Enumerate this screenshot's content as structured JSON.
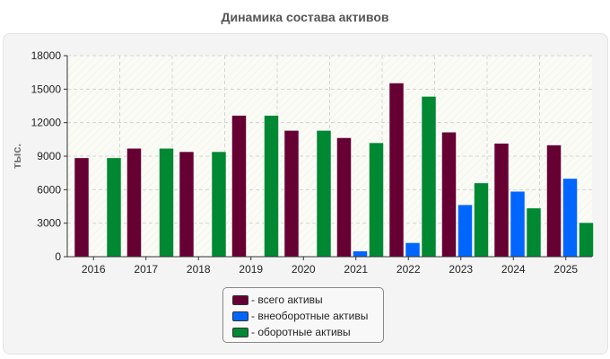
{
  "title": "Динамика состава активов",
  "chart_data": {
    "type": "bar",
    "categories": [
      "2016",
      "2017",
      "2018",
      "2019",
      "2020",
      "2021",
      "2022",
      "2023",
      "2024",
      "2025"
    ],
    "ylabel": "тыс.",
    "ylim": [
      0,
      18000
    ],
    "yticks": [
      0,
      3000,
      6000,
      9000,
      12000,
      15000,
      18000
    ],
    "grid": true,
    "legend_position": "bottom",
    "series": [
      {
        "name": "- всего активы",
        "color": "#660033",
        "values": [
          8850,
          9700,
          9400,
          12650,
          11300,
          10650,
          15550,
          11150,
          10150,
          10000
        ]
      },
      {
        "name": "- внеоборотные активы",
        "color": "#0066ff",
        "values": [
          50,
          50,
          50,
          50,
          50,
          500,
          1250,
          4650,
          5850,
          7000
        ]
      },
      {
        "name": "- оборотные активы",
        "color": "#008833",
        "values": [
          8850,
          9700,
          9400,
          12650,
          11300,
          10200,
          14350,
          6600,
          4350,
          3050
        ]
      }
    ]
  }
}
